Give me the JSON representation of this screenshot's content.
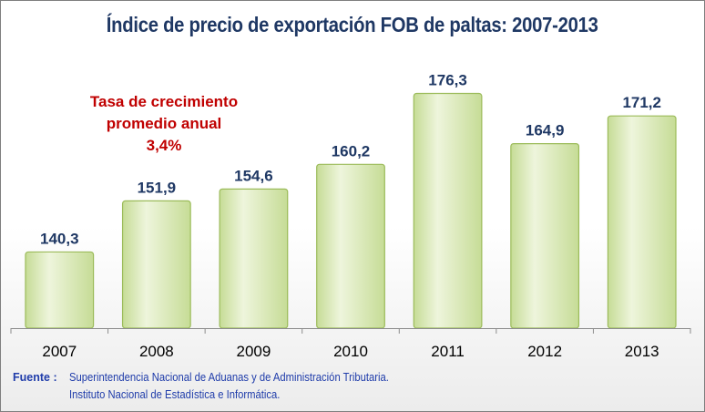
{
  "chart_data": {
    "type": "bar",
    "title": "Índice de precio de exportación FOB de paltas: 2007-2013",
    "categories": [
      "2007",
      "2008",
      "2009",
      "2010",
      "2011",
      "2012",
      "2013"
    ],
    "values": [
      140.3,
      151.9,
      154.6,
      160.2,
      176.3,
      164.9,
      171.2
    ],
    "value_labels": [
      "140,3",
      "151,9",
      "154,6",
      "160,2",
      "176,3",
      "164,9",
      "171,2"
    ],
    "xlabel": "",
    "ylabel": "",
    "ylim": [
      123,
      182
    ],
    "grid": false,
    "legend": "none",
    "annotation": {
      "line1": "Tasa de crecimiento",
      "line2": "promedio anual",
      "line3": "3,4%"
    }
  },
  "source": {
    "label": "Fuente :",
    "line1": "Superintendencia Nacional de Aduanas y de Administración Tributaria.",
    "line2": "Instituto Nacional de Estadística e Informática."
  },
  "colors": {
    "bar_fill_light": "#eef5dc",
    "bar_fill_dark": "#c6dc96",
    "bar_stroke": "#9bbb59",
    "title": "#1f3864",
    "value_label": "#1f3864",
    "annotation": "#c00000",
    "source_text": "#1f3caa"
  }
}
